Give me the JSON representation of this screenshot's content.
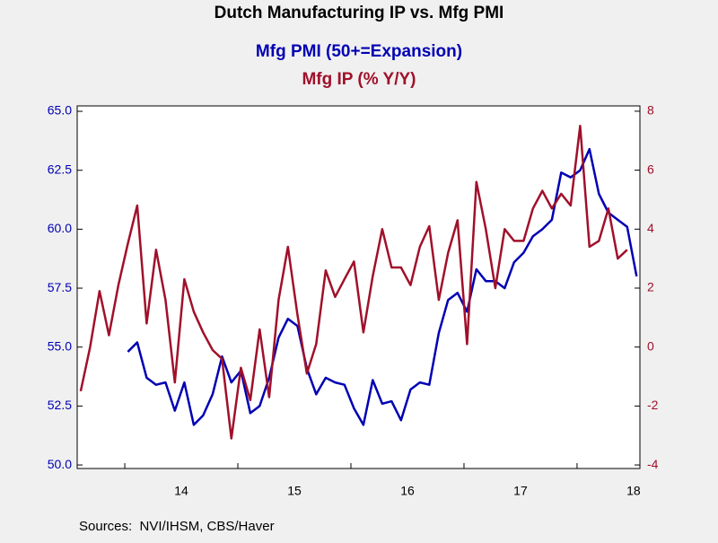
{
  "chart_data": {
    "type": "line",
    "title": "Dutch Manufacturing IP vs. Mfg PMI",
    "source": "Sources:  NVI/IHSM, CBS/Haver",
    "x": [
      2013.61,
      2013.693,
      2013.777,
      2013.86,
      2013.943,
      2014.027,
      2014.11,
      2014.193,
      2014.277,
      2014.36,
      2014.443,
      2014.527,
      2014.61,
      2014.693,
      2014.777,
      2014.86,
      2014.943,
      2015.027,
      2015.11,
      2015.193,
      2015.277,
      2015.36,
      2015.443,
      2015.527,
      2015.61,
      2015.693,
      2015.777,
      2015.86,
      2015.943,
      2016.027,
      2016.11,
      2016.193,
      2016.277,
      2016.36,
      2016.443,
      2016.527,
      2016.61,
      2016.693,
      2016.777,
      2016.86,
      2016.943,
      2017.027,
      2017.11,
      2017.193,
      2017.277,
      2017.36,
      2017.443,
      2017.527,
      2017.61,
      2017.693,
      2017.777,
      2017.86,
      2017.943,
      2018.027,
      2018.11,
      2018.193,
      2018.277,
      2018.36,
      2018.443,
      2018.527
    ],
    "series": [
      {
        "name": "Mfg PMI (50+=Expansion)",
        "color": "#0000b4",
        "axis": "y",
        "values": [
          null,
          null,
          null,
          null,
          null,
          54.8,
          55.2,
          53.7,
          53.4,
          53.5,
          52.3,
          53.5,
          51.7,
          52.1,
          53.0,
          54.6,
          53.5,
          54.0,
          52.2,
          52.5,
          53.7,
          55.4,
          56.2,
          55.9,
          54.1,
          53.0,
          53.7,
          53.5,
          53.4,
          52.4,
          51.7,
          53.6,
          52.6,
          52.7,
          51.9,
          53.2,
          53.5,
          53.4,
          55.6,
          57.0,
          57.3,
          56.5,
          58.3,
          57.8,
          57.8,
          57.5,
          58.6,
          59.0,
          59.7,
          60.0,
          60.4,
          62.4,
          62.2,
          62.5,
          63.4,
          61.5,
          60.7,
          60.4,
          60.1,
          58.0
        ]
      },
      {
        "name": "Mfg IP (% Y/Y)",
        "color": "#a0102a",
        "axis": "y2",
        "values": [
          -1.5,
          0.0,
          1.9,
          0.4,
          2.1,
          3.5,
          4.8,
          0.8,
          3.3,
          1.6,
          -1.2,
          2.3,
          1.2,
          0.5,
          -0.1,
          -0.4,
          -3.1,
          -0.7,
          -1.8,
          0.6,
          -1.7,
          1.6,
          3.4,
          1.1,
          -0.9,
          0.1,
          2.6,
          1.7,
          2.3,
          2.9,
          0.5,
          2.4,
          4.0,
          2.7,
          2.7,
          2.1,
          3.4,
          4.1,
          1.6,
          3.2,
          4.3,
          0.1,
          5.6,
          4.0,
          2.0,
          4.0,
          3.6,
          3.6,
          4.7,
          5.3,
          4.7,
          5.2,
          4.8,
          7.5,
          3.4,
          3.6,
          4.7,
          3.0,
          3.3,
          null
        ]
      }
    ],
    "xlim": [
      2013.579,
      2018.556
    ],
    "xticks": [
      {
        "value": 2014,
        "label": "14"
      },
      {
        "value": 2015,
        "label": "15"
      },
      {
        "value": 2016,
        "label": "16"
      },
      {
        "value": 2017,
        "label": "17"
      },
      {
        "value": 2018,
        "label": "18"
      }
    ],
    "ylim": [
      49.85,
      65.23
    ],
    "yticks": [
      {
        "value": 50,
        "label": "50.0"
      },
      52.5,
      {
        "value": 55,
        "label": "55.0"
      },
      57.5,
      {
        "value": 60,
        "label": "60.0"
      },
      62.5,
      {
        "value": 65,
        "label": "65.0"
      }
    ],
    "y2lim": [
      -4.12,
      8.18
    ],
    "y2ticks": [
      -4,
      -2,
      0,
      2,
      4,
      6,
      8
    ],
    "grid": false
  }
}
